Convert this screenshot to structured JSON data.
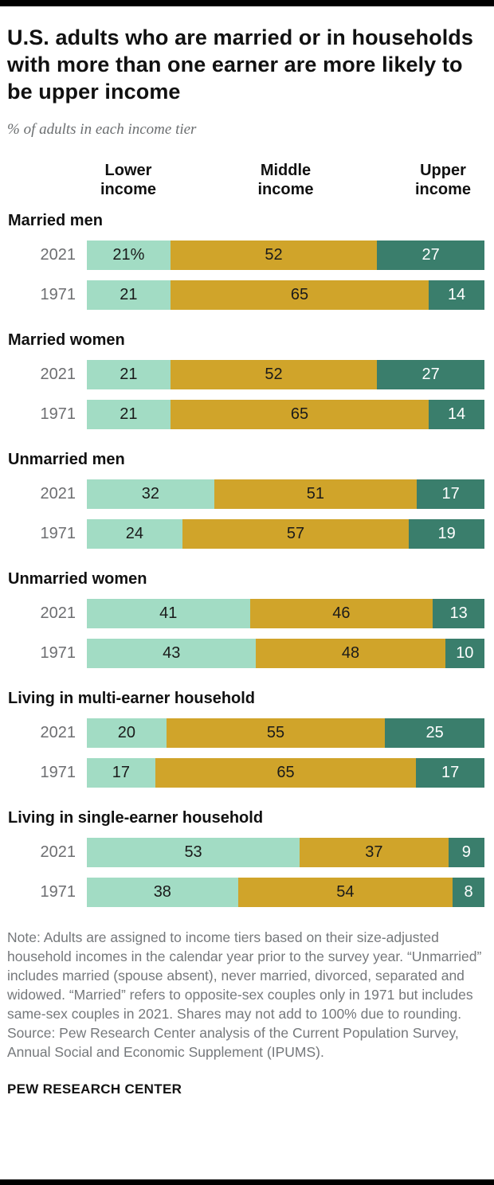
{
  "header": {
    "title": "U.S. adults who are married or in households with more than one earner are more likely to be upper income",
    "subtitle": "% of adults in each income tier"
  },
  "chart_data": {
    "type": "bar",
    "orientation": "horizontal",
    "stacked": true,
    "column_headers": [
      "Lower income",
      "Middle income",
      "Upper income"
    ],
    "segment_keys": [
      "lower",
      "middle",
      "upper"
    ],
    "colors": {
      "lower": "#a2dcc4",
      "middle": "#d0a42a",
      "upper": "#3a7e6c"
    },
    "xlim": [
      0,
      100
    ],
    "grid": false,
    "groups": [
      {
        "label": "Married men",
        "rows": [
          {
            "year": "2021",
            "values": [
              21,
              52,
              27
            ],
            "labels": [
              "21%",
              "52",
              "27"
            ]
          },
          {
            "year": "1971",
            "values": [
              21,
              65,
              14
            ],
            "labels": [
              "21",
              "65",
              "14"
            ]
          }
        ]
      },
      {
        "label": "Married women",
        "rows": [
          {
            "year": "2021",
            "values": [
              21,
              52,
              27
            ],
            "labels": [
              "21",
              "52",
              "27"
            ]
          },
          {
            "year": "1971",
            "values": [
              21,
              65,
              14
            ],
            "labels": [
              "21",
              "65",
              "14"
            ]
          }
        ]
      },
      {
        "label": "Unmarried men",
        "rows": [
          {
            "year": "2021",
            "values": [
              32,
              51,
              17
            ],
            "labels": [
              "32",
              "51",
              "17"
            ]
          },
          {
            "year": "1971",
            "values": [
              24,
              57,
              19
            ],
            "labels": [
              "24",
              "57",
              "19"
            ]
          }
        ]
      },
      {
        "label": "Unmarried women",
        "rows": [
          {
            "year": "2021",
            "values": [
              41,
              46,
              13
            ],
            "labels": [
              "41",
              "46",
              "13"
            ]
          },
          {
            "year": "1971",
            "values": [
              43,
              48,
              10
            ],
            "labels": [
              "43",
              "48",
              "10"
            ]
          }
        ]
      },
      {
        "label": "Living in multi-earner household",
        "rows": [
          {
            "year": "2021",
            "values": [
              20,
              55,
              25
            ],
            "labels": [
              "20",
              "55",
              "25"
            ]
          },
          {
            "year": "1971",
            "values": [
              17,
              65,
              17
            ],
            "labels": [
              "17",
              "65",
              "17"
            ]
          }
        ]
      },
      {
        "label": "Living in single-earner household",
        "rows": [
          {
            "year": "2021",
            "values": [
              53,
              37,
              9
            ],
            "labels": [
              "53",
              "37",
              "9"
            ]
          },
          {
            "year": "1971",
            "values": [
              38,
              54,
              8
            ],
            "labels": [
              "38",
              "54",
              "8"
            ]
          }
        ]
      }
    ]
  },
  "footer": {
    "note": "Note: Adults are assigned to income tiers based on their size-adjusted household incomes in the calendar year prior to the survey year. “Unmarried” includes married (spouse absent), never married, divorced, separated and widowed. “Married” refers to opposite-sex couples only in 1971 but includes same-sex couples in 2021. Shares may not add to 100% due to rounding.",
    "source": "Source: Pew Research Center analysis of the Current Population Survey, Annual Social and Economic Supplement (IPUMS).",
    "brand": "PEW RESEARCH CENTER"
  }
}
